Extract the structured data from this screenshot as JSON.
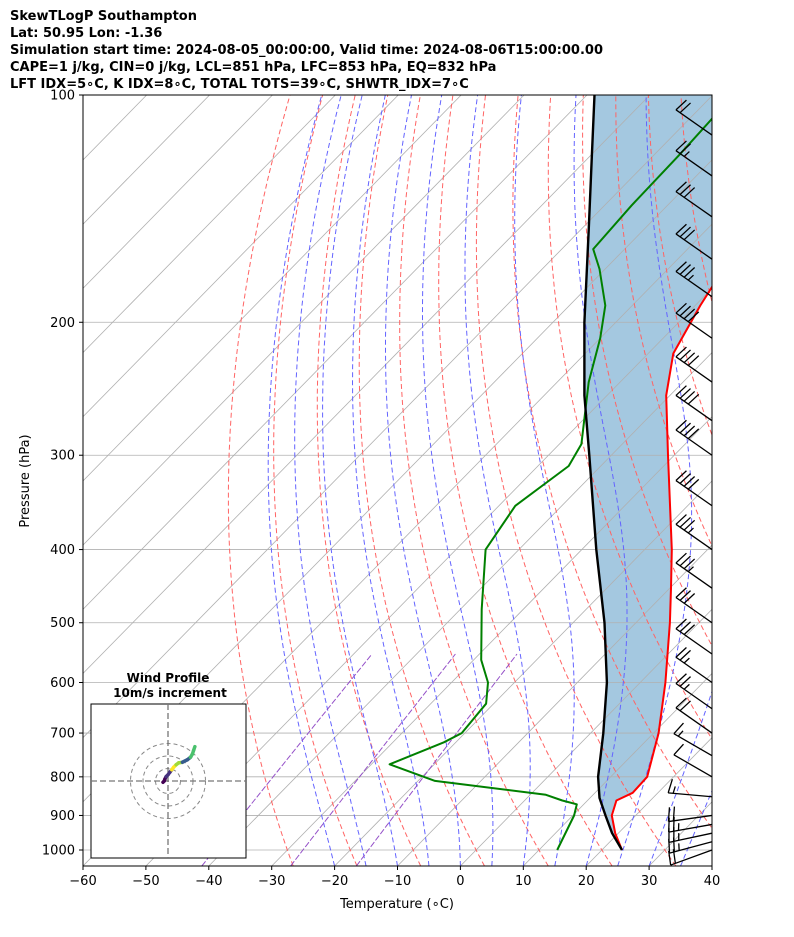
{
  "header": {
    "title": "SkewTLogP Southampton",
    "location": "Lat: 50.95   Lon: -1.36",
    "times": "Simulation start time: 2024-08-05_00:00:00, Valid time: 2024-08-06T15:00:00.00",
    "indices1": "CAPE=1 j/kg, CIN=0 j/kg, LCL=851 hPa, LFC=853 hPa, EQ=832 hPa",
    "indices2": "LFT IDX=5∘C, K IDX=8∘C, TOTAL TOTS=39∘C, SHWTR_IDX=7∘C"
  },
  "chart_data": {
    "type": "line",
    "xlabel": "Temperature (∘C)",
    "ylabel": "Pressure (hPa)",
    "xlim": [
      -60,
      40
    ],
    "ylim": [
      1050,
      100
    ],
    "y_scale": "log",
    "x_ticks": [
      "−60",
      "−50",
      "−40",
      "−30",
      "−20",
      "−10",
      "0",
      "10",
      "20",
      "30",
      "40"
    ],
    "y_ticks": [
      {
        "p": 1000,
        "label": "1000"
      },
      {
        "p": 900,
        "label": "900"
      },
      {
        "p": 800,
        "label": "800"
      },
      {
        "p": 700,
        "label": "700"
      },
      {
        "p": 600,
        "label": "600"
      },
      {
        "p": 500,
        "label": "500"
      },
      {
        "p": 400,
        "label": "400"
      },
      {
        "p": 300,
        "label": "300"
      },
      {
        "p": 200,
        "label": "200"
      },
      {
        "p": 100,
        "label": "100"
      }
    ],
    "colors": {
      "temperature": "#ff0000",
      "dewpoint": "#008000",
      "parcel": "#000000",
      "shade": "#a4c8e0",
      "dry_adiabat": "#ff6464",
      "moist_adiabat": "#6464ff",
      "mixing_ratio": "#9450c8",
      "isotherm": "#b0b0b0"
    },
    "series": [
      {
        "points": [
          {
            "p": 1000,
            "t": 23.2
          },
          {
            "p": 950,
            "t": 19.5
          },
          {
            "p": 900,
            "t": 16.2
          },
          {
            "p": 860,
            "t": 14.6
          },
          {
            "p": 840,
            "t": 16.0
          },
          {
            "p": 800,
            "t": 15.8
          },
          {
            "p": 700,
            "t": 10.8
          },
          {
            "p": 600,
            "t": 4.0
          },
          {
            "p": 500,
            "t": -4.6
          },
          {
            "p": 450,
            "t": -9.8
          },
          {
            "p": 400,
            "t": -15.7
          },
          {
            "p": 300,
            "t": -31.0
          },
          {
            "p": 250,
            "t": -40.6
          },
          {
            "p": 220,
            "t": -46.0
          },
          {
            "p": 190,
            "t": -49.2
          },
          {
            "p": 170,
            "t": -51.2
          },
          {
            "p": 150,
            "t": -52.0
          },
          {
            "p": 130,
            "t": -54.2
          },
          {
            "p": 115,
            "t": -55.4
          },
          {
            "p": 100,
            "t": -54.7
          }
        ]
      },
      {
        "points": [
          {
            "p": 1000,
            "t": 12.9
          },
          {
            "p": 900,
            "t": 10.2
          },
          {
            "p": 870,
            "t": 8.9
          },
          {
            "p": 860,
            "t": 6.0
          },
          {
            "p": 845,
            "t": 2.5
          },
          {
            "p": 810,
            "t": -17.3
          },
          {
            "p": 770,
            "t": -27.1
          },
          {
            "p": 720,
            "t": -21.9
          },
          {
            "p": 700,
            "t": -20.5
          },
          {
            "p": 640,
            "t": -21.2
          },
          {
            "p": 600,
            "t": -24.2
          },
          {
            "p": 560,
            "t": -28.8
          },
          {
            "p": 480,
            "t": -36.6
          },
          {
            "p": 400,
            "t": -45.3
          },
          {
            "p": 350,
            "t": -47.4
          },
          {
            "p": 310,
            "t": -45.1
          },
          {
            "p": 290,
            "t": -46.5
          },
          {
            "p": 240,
            "t": -55.0
          },
          {
            "p": 210,
            "t": -60.0
          },
          {
            "p": 190,
            "t": -64.3
          },
          {
            "p": 170,
            "t": -70.9
          },
          {
            "p": 160,
            "t": -75.0
          },
          {
            "p": 140,
            "t": -75.7
          },
          {
            "p": 120,
            "t": -76.0
          },
          {
            "p": 100,
            "t": -76.7
          }
        ]
      },
      {
        "points": [
          {
            "p": 1000,
            "t": 23.2
          },
          {
            "p": 950,
            "t": 19.0
          },
          {
            "p": 900,
            "t": 15.2
          },
          {
            "p": 853,
            "t": 11.5
          },
          {
            "p": 800,
            "t": 8.0
          },
          {
            "p": 700,
            "t": 2.0
          },
          {
            "p": 600,
            "t": -5.3
          },
          {
            "p": 500,
            "t": -15.0
          },
          {
            "p": 400,
            "t": -27.7
          },
          {
            "p": 300,
            "t": -43.5
          },
          {
            "p": 250,
            "t": -53.6
          },
          {
            "p": 200,
            "t": -65.0
          },
          {
            "p": 150,
            "t": -79.0
          },
          {
            "p": 120,
            "t": -89.9
          },
          {
            "p": 100,
            "t": -98.8
          }
        ]
      }
    ],
    "wind_barbs": [
      {
        "p": 1000,
        "speed_kt": 20,
        "from_deg": 250
      },
      {
        "p": 975,
        "speed_kt": 25,
        "from_deg": 255
      },
      {
        "p": 950,
        "speed_kt": 25,
        "from_deg": 258
      },
      {
        "p": 925,
        "speed_kt": 25,
        "from_deg": 260
      },
      {
        "p": 900,
        "speed_kt": 20,
        "from_deg": 262
      },
      {
        "p": 850,
        "speed_kt": 15,
        "from_deg": 275
      },
      {
        "p": 800,
        "speed_kt": 10,
        "from_deg": 300
      },
      {
        "p": 750,
        "speed_kt": 15,
        "from_deg": 300
      },
      {
        "p": 700,
        "speed_kt": 20,
        "from_deg": 305
      },
      {
        "p": 650,
        "speed_kt": 25,
        "from_deg": 305
      },
      {
        "p": 600,
        "speed_kt": 25,
        "from_deg": 305
      },
      {
        "p": 550,
        "speed_kt": 30,
        "from_deg": 305
      },
      {
        "p": 500,
        "speed_kt": 30,
        "from_deg": 305
      },
      {
        "p": 450,
        "speed_kt": 35,
        "from_deg": 305
      },
      {
        "p": 400,
        "speed_kt": 35,
        "from_deg": 305
      },
      {
        "p": 350,
        "speed_kt": 40,
        "from_deg": 305
      },
      {
        "p": 300,
        "speed_kt": 40,
        "from_deg": 305
      },
      {
        "p": 270,
        "speed_kt": 40,
        "from_deg": 305
      },
      {
        "p": 240,
        "speed_kt": 40,
        "from_deg": 305
      },
      {
        "p": 210,
        "speed_kt": 40,
        "from_deg": 305
      },
      {
        "p": 185,
        "speed_kt": 35,
        "from_deg": 305
      },
      {
        "p": 165,
        "speed_kt": 30,
        "from_deg": 305
      },
      {
        "p": 145,
        "speed_kt": 30,
        "from_deg": 305
      },
      {
        "p": 128,
        "speed_kt": 25,
        "from_deg": 305
      },
      {
        "p": 113,
        "speed_kt": 20,
        "from_deg": 305
      }
    ],
    "hodograph": {
      "title": "Wind Profile",
      "subtitle": "10m/s increment",
      "ring_step_ms": 10,
      "points_uv": [
        [
          -4,
          -1
        ],
        [
          -3,
          0
        ],
        [
          -2.5,
          1.5
        ],
        [
          -1.5,
          3.5
        ],
        [
          0,
          5
        ],
        [
          1.5,
          7
        ],
        [
          3,
          9
        ],
        [
          4.5,
          11
        ],
        [
          6.5,
          13
        ],
        [
          8.5,
          14.5
        ],
        [
          11.5,
          15
        ],
        [
          15.5,
          17
        ],
        [
          18,
          19
        ],
        [
          19.5,
          21.5
        ],
        [
          20.5,
          24.5
        ],
        [
          21.5,
          27.5
        ]
      ]
    }
  }
}
